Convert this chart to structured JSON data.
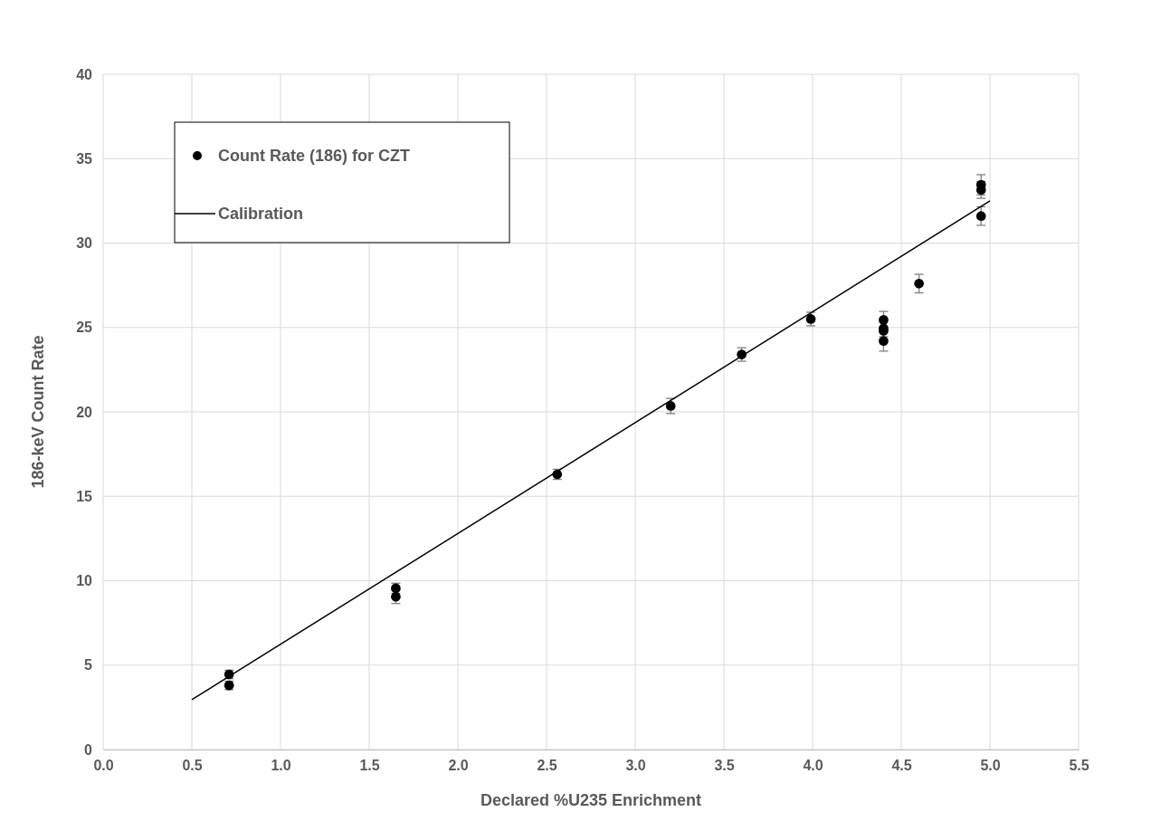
{
  "chart_data": {
    "type": "scatter",
    "xlabel": "Declared %U235  Enrichment",
    "ylabel": "186-keV Count Rate",
    "xlim": [
      0,
      5.5
    ],
    "xticks": [
      {
        "value": 0,
        "label": "0.0"
      },
      {
        "value": 0.5,
        "label": "0.5"
      },
      {
        "value": 1,
        "label": "1.0"
      },
      {
        "value": 1.5,
        "label": "1.5"
      },
      {
        "value": 2,
        "label": "2.0"
      },
      {
        "value": 2.5,
        "label": "2.5"
      },
      {
        "value": 3,
        "label": "3.0"
      },
      {
        "value": 3.5,
        "label": "3.5"
      },
      {
        "value": 4,
        "label": "4.0"
      },
      {
        "value": 4.5,
        "label": "4.5"
      },
      {
        "value": 5,
        "label": "5.0"
      },
      {
        "value": 5.5,
        "label": "5.5"
      }
    ],
    "ylim": [
      0,
      40
    ],
    "yticks": [
      0,
      5,
      10,
      15,
      20,
      25,
      30,
      35,
      40
    ],
    "grid": true,
    "legend": "top left",
    "series": [
      {
        "name": "Count Rate (186) for CZT",
        "color": "#000000",
        "marker": "circle",
        "x": [
          0.71,
          0.71,
          1.65,
          1.65,
          2.56,
          3.2,
          3.6,
          3.99,
          4.4,
          4.4,
          4.4,
          4.4,
          4.6,
          4.95,
          4.95,
          4.95
        ],
        "values": [
          4.45,
          3.8,
          9.55,
          9.05,
          16.3,
          20.35,
          23.4,
          25.5,
          25.45,
          24.95,
          24.8,
          24.2,
          27.6,
          33.45,
          33.15,
          31.6
        ],
        "errors": [
          0.25,
          0.25,
          0.3,
          0.4,
          0.3,
          0.45,
          0.4,
          0.4,
          0.5,
          0.5,
          0.5,
          0.6,
          0.55,
          0.6,
          0.5,
          0.55
        ]
      },
      {
        "name": "Calibration",
        "type": "line",
        "color": "#000000",
        "line_style": "solid",
        "marker": "none",
        "x": [
          0.5,
          5.0
        ],
        "values": [
          2.95,
          32.5
        ]
      }
    ]
  }
}
